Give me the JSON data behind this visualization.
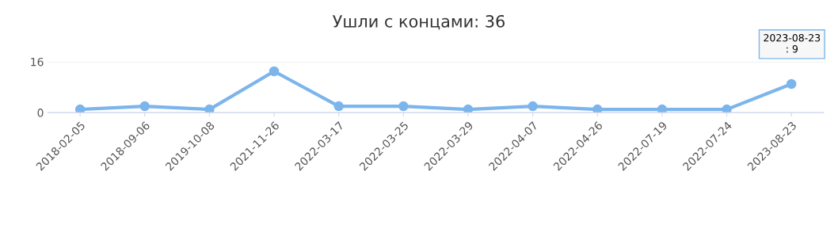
{
  "chart_data": {
    "type": "line",
    "title": "Ушли с концами: 36",
    "categories": [
      "2018-02-05",
      "2018-09-06",
      "2019-10-08",
      "2021-11-26",
      "2022-03-17",
      "2022-03-25",
      "2022-03-29",
      "2022-04-07",
      "2022-04-26",
      "2022-07-19",
      "2022-07-24",
      "2023-08-23"
    ],
    "series": [
      {
        "color": "#7cb5ec",
        "values": [
          1,
          2,
          1,
          13,
          2,
          2,
          1,
          2,
          1,
          1,
          1,
          9
        ]
      }
    ],
    "ylim": [
      0,
      16
    ],
    "yticks": [
      0,
      16
    ],
    "grid": "y",
    "marker": "circle",
    "line_style": "solid",
    "annotations": [
      "2023-08-23\n: 9"
    ]
  }
}
